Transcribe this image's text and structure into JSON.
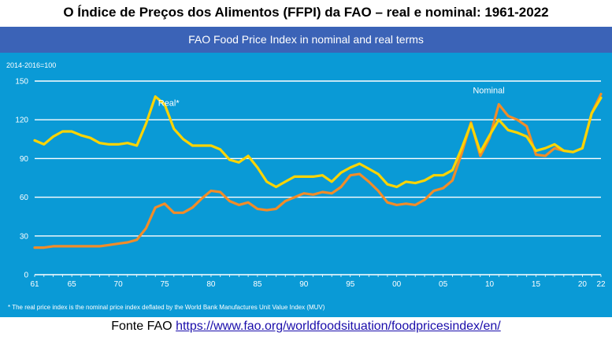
{
  "header": {
    "title": "O Índice de Preços dos Alimentos (FFPI) da FAO – real e nominal: 1961-2022"
  },
  "panel": {
    "title": "FAO Food Price Index in nominal and real terms",
    "background": "#0a9ad6",
    "header_background": "#3b63b7"
  },
  "footer": {
    "prefix": "Fonte FAO",
    "link_text": "https://www.fao.org/worldfoodsituation/foodpricesindex/en/"
  },
  "chart_data": {
    "type": "line",
    "title": "FAO Food Price Index in nominal and real terms",
    "unit_label": "2014-2016=100",
    "footnote": "* The real price index is the nominal price index deflated by the World Bank Manufactures Unit Value Index (MUV)",
    "xlim": [
      1961,
      2022
    ],
    "ylim": [
      0,
      150
    ],
    "yticks": [
      0,
      30,
      60,
      90,
      120,
      150
    ],
    "xtick_labels": [
      "61",
      "65",
      "70",
      "75",
      "80",
      "85",
      "90",
      "95",
      "00",
      "05",
      "10",
      "15",
      "20",
      "22"
    ],
    "xtick_values": [
      1961,
      1965,
      1970,
      1975,
      1980,
      1985,
      1990,
      1995,
      2000,
      2005,
      2010,
      2015,
      2020,
      2022
    ],
    "grid": true,
    "x": [
      1961,
      1962,
      1963,
      1964,
      1965,
      1966,
      1967,
      1968,
      1969,
      1970,
      1971,
      1972,
      1973,
      1974,
      1975,
      1976,
      1977,
      1978,
      1979,
      1980,
      1981,
      1982,
      1983,
      1984,
      1985,
      1986,
      1987,
      1988,
      1989,
      1990,
      1991,
      1992,
      1993,
      1994,
      1995,
      1996,
      1997,
      1998,
      1999,
      2000,
      2001,
      2002,
      2003,
      2004,
      2005,
      2006,
      2007,
      2008,
      2009,
      2010,
      2011,
      2012,
      2013,
      2014,
      2015,
      2016,
      2017,
      2018,
      2019,
      2020,
      2021,
      2022
    ],
    "series": [
      {
        "name": "Real*",
        "color": "#ffd400",
        "values": [
          104,
          101,
          107,
          111,
          111,
          108,
          106,
          102,
          101,
          101,
          102,
          100,
          117,
          138,
          132,
          113,
          105,
          100,
          100,
          100,
          97,
          89,
          87,
          92,
          83,
          72,
          68,
          72,
          76,
          76,
          76,
          77,
          72,
          79,
          83,
          86,
          82,
          78,
          70,
          68,
          72,
          71,
          73,
          77,
          77,
          81,
          98,
          117,
          95,
          108,
          120,
          112,
          110,
          107,
          96,
          98,
          101,
          96,
          95,
          98,
          125,
          137
        ]
      },
      {
        "name": "Nominal",
        "color": "#f28c28",
        "values": [
          21,
          21,
          22,
          22,
          22,
          22,
          22,
          22,
          23,
          24,
          25,
          27,
          36,
          52,
          55,
          48,
          48,
          52,
          59,
          65,
          64,
          57,
          54,
          56,
          51,
          50,
          51,
          57,
          60,
          63,
          62,
          64,
          63,
          68,
          77,
          78,
          72,
          65,
          56,
          54,
          55,
          54,
          58,
          65,
          67,
          73,
          94,
          118,
          92,
          106,
          132,
          123,
          120,
          115,
          93,
          92,
          98,
          96,
          95,
          98,
          125,
          140
        ]
      }
    ]
  }
}
